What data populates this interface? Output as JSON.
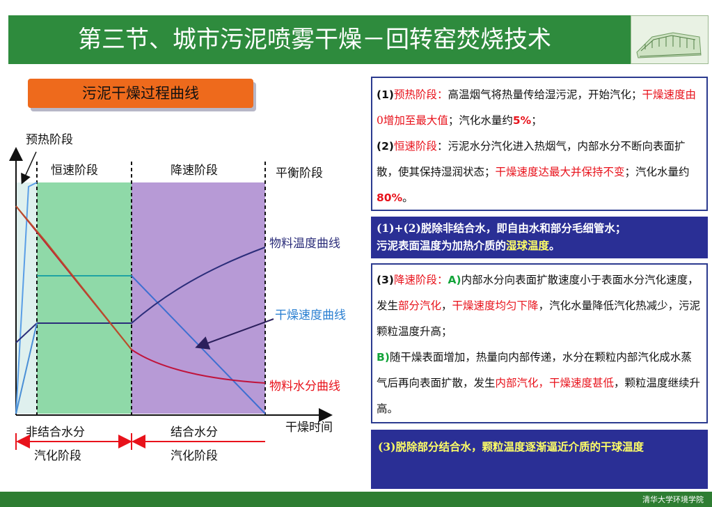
{
  "header": {
    "title": "第三节、城市污泥喷雾干燥－回转窑焚烧技术"
  },
  "pill": {
    "label": "污泥干燥过程曲线"
  },
  "diagram": {
    "preheat_label": "预热阶段",
    "constant_label": "恒速阶段",
    "falling_label": "降速阶段",
    "equilibrium_label": "平衡阶段",
    "temp_curve_label": "物料温度曲线",
    "rate_curve_label": "干燥速度曲线",
    "moisture_curve_label": "物料水分曲线",
    "time_axis_label": "干燥时间",
    "nonbound_label_1": "非结合水分",
    "nonbound_label_2": "汽化阶段",
    "bound_label_1": "结合水分",
    "bound_label_2": "汽化阶段"
  },
  "box1": {
    "p1_num": "(1)",
    "p1_name": "预热阶段：",
    "p1_text_a": "高温烟气将热量传给湿污泥，开始汽化；",
    "p1_red": "干燥速度由0增加至最大值",
    "p1_text_b": "；汽化水量约",
    "p1_pct": "5%",
    "p1_end": "；",
    "p2_num": "(2)",
    "p2_name": "恒速阶段",
    "p2_text_a": "：污泥水分汽化进入热烟气，内部水分不断向表面扩散，使其保持湿润状态；",
    "p2_red": "干燥速度达最大并保持不变",
    "p2_text_b": "；汽化水量约",
    "p2_pct": "80%",
    "p2_end": "。"
  },
  "box2": {
    "line1": "(1)+(2)脱除非结合水，即自由水和部分毛细管水；",
    "line2_a": "污泥表面温度为加热介质的",
    "line2_b": "湿球温度",
    "line2_c": "。"
  },
  "box3": {
    "num": "(3)",
    "name": "降速阶段：",
    "a_tag": "A)",
    "a_text_1": "内部水分向表面扩散速度小于表面水分汽化速度，发生",
    "a_red_1": "部分汽化",
    "a_sep": "，",
    "a_red_2": "干燥速度均匀下降",
    "a_text_2": "，汽化水量降低汽化热减少，污泥颗粒温度升高；",
    "b_tag": "B)",
    "b_text_1": "随干燥表面增加，热量向内部传递，水分在颗粒内部汽化成水蒸气后再向表面扩散，发生",
    "b_red_1": "内部汽化，干燥速度甚低",
    "b_text_2": "，颗粒温度继续升高。"
  },
  "box4": {
    "text": "(3)脱除部分结合水，颗粒温度逐渐逼近介质的干球温度"
  },
  "footer": {
    "logo_text": "清华大学环境学院"
  },
  "colors": {
    "header_green": "#2e8b3d",
    "preheat_zone": "#dff0ee",
    "constant_zone": "#8fd9a8",
    "falling_zone": "#b79ad6",
    "temperature_curve": "#2b2d7a",
    "moisture_curve": "#c0143c",
    "rate_curve": "#3d6fd1",
    "box_border": "#2b3a8f",
    "box_fill": "#2a2f95",
    "highlight_red": "#e8121b",
    "highlight_green": "#13a43a"
  }
}
